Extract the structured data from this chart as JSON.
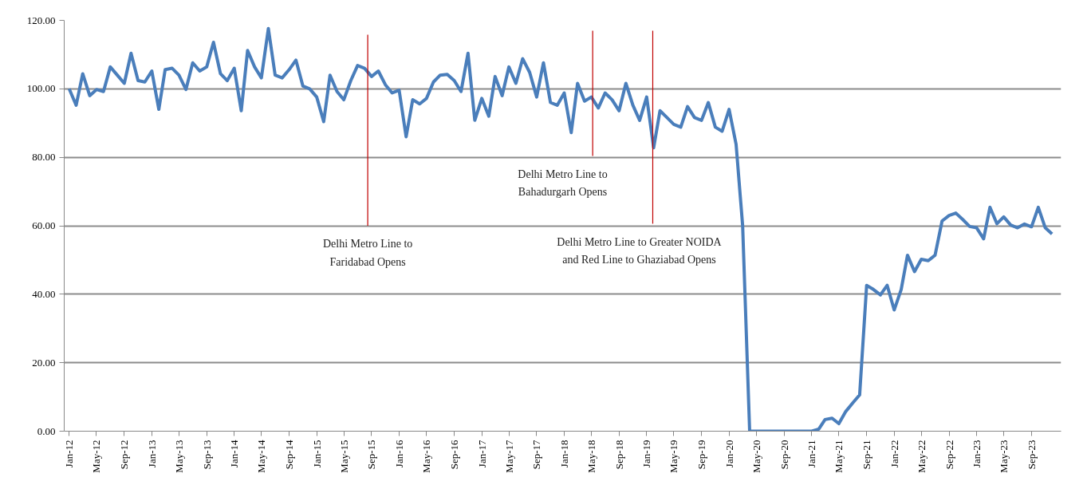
{
  "chart_data": {
    "type": "line",
    "x": [
      "2012-01",
      "2012-02",
      "2012-03",
      "2012-04",
      "2012-05",
      "2012-06",
      "2012-07",
      "2012-08",
      "2012-09",
      "2012-10",
      "2012-11",
      "2012-12",
      "2013-01",
      "2013-02",
      "2013-03",
      "2013-04",
      "2013-05",
      "2013-06",
      "2013-07",
      "2013-08",
      "2013-09",
      "2013-10",
      "2013-11",
      "2013-12",
      "2014-01",
      "2014-02",
      "2014-03",
      "2014-04",
      "2014-05",
      "2014-06",
      "2014-07",
      "2014-08",
      "2014-09",
      "2014-10",
      "2014-11",
      "2014-12",
      "2015-01",
      "2015-02",
      "2015-03",
      "2015-04",
      "2015-05",
      "2015-06",
      "2015-07",
      "2015-08",
      "2015-09",
      "2015-10",
      "2015-11",
      "2015-12",
      "2016-01",
      "2016-02",
      "2016-03",
      "2016-04",
      "2016-05",
      "2016-06",
      "2016-07",
      "2016-08",
      "2016-09",
      "2016-10",
      "2016-11",
      "2016-12",
      "2017-01",
      "2017-02",
      "2017-03",
      "2017-04",
      "2017-05",
      "2017-06",
      "2017-07",
      "2017-08",
      "2017-09",
      "2017-10",
      "2017-11",
      "2017-12",
      "2018-01",
      "2018-02",
      "2018-03",
      "2018-04",
      "2018-05",
      "2018-06",
      "2018-07",
      "2018-08",
      "2018-09",
      "2018-10",
      "2018-11",
      "2018-12",
      "2019-01",
      "2019-02",
      "2019-03",
      "2019-04",
      "2019-05",
      "2019-06",
      "2019-07",
      "2019-08",
      "2019-09",
      "2019-10",
      "2019-11",
      "2019-12",
      "2020-01",
      "2020-02",
      "2020-03",
      "2020-04",
      "2020-05",
      "2020-06",
      "2020-07",
      "2020-08",
      "2020-09",
      "2020-10",
      "2020-11",
      "2020-12",
      "2021-01",
      "2021-02",
      "2021-03",
      "2021-04",
      "2021-05",
      "2021-06",
      "2021-07",
      "2021-08",
      "2021-09",
      "2021-10",
      "2021-11",
      "2021-12",
      "2022-01",
      "2022-02",
      "2022-03",
      "2022-04",
      "2022-05",
      "2022-06",
      "2022-07",
      "2022-08",
      "2022-09",
      "2022-10",
      "2022-11",
      "2022-12",
      "2023-01",
      "2023-02",
      "2023-03",
      "2023-04",
      "2023-05",
      "2023-06",
      "2023-07",
      "2023-08",
      "2023-09",
      "2023-10",
      "2023-11",
      "2023-12"
    ],
    "series": [
      {
        "color": "#4a7ebb",
        "values": [
          100,
          95.2,
          104.4,
          98,
          99.8,
          99.2,
          106.4,
          104,
          101.6,
          110.4,
          102.4,
          102,
          105.2,
          94,
          105.6,
          106,
          104,
          99.8,
          107.6,
          105.2,
          106.4,
          113.6,
          104.4,
          102.4,
          106,
          93.6,
          111.2,
          106.4,
          103.2,
          117.6,
          104,
          103.2,
          105.6,
          108.4,
          100.8,
          100,
          97.6,
          90.4,
          104,
          99.2,
          96.8,
          102.4,
          106.8,
          106,
          103.6,
          105.2,
          101.2,
          98.8,
          99.6,
          86,
          96.8,
          95.6,
          97.2,
          102,
          104,
          104.2,
          102.4,
          99.2,
          110.4,
          90.8,
          97.2,
          92,
          103.6,
          98,
          106.4,
          101.6,
          108.8,
          104.8,
          97.6,
          107.6,
          96,
          95.2,
          98.8,
          87.2,
          101.6,
          96.4,
          97.6,
          94.4,
          98.8,
          96.8,
          93.6,
          101.6,
          95.2,
          90.8,
          97.6,
          82.8,
          93.6,
          91.6,
          89.6,
          88.8,
          94.8,
          91.6,
          90.8,
          96,
          88.8,
          87.6,
          94,
          83.8,
          60,
          0,
          0,
          0,
          0,
          0,
          0,
          0,
          0,
          0,
          0,
          0.6,
          3.4,
          3.8,
          2.2,
          5.8,
          8.2,
          10.6,
          42.6,
          41.4,
          39.8,
          42.6,
          35.4,
          41.4,
          51.4,
          46.6,
          50.2,
          49.8,
          51.4,
          61.4,
          63,
          63.7,
          61.8,
          59.8,
          59.4,
          56.2,
          65.4,
          60.6,
          62.6,
          60.2,
          59.4,
          60.5,
          59.7,
          65.4,
          59.4,
          57.6
        ]
      }
    ],
    "xlim": [
      "2011-12-10",
      "2024-01-10"
    ],
    "xticks": [
      {
        "value": "2012-01",
        "label": "Jan-12"
      },
      {
        "value": "2012-05",
        "label": "May-12"
      },
      {
        "value": "2012-09",
        "label": "Sep-12"
      },
      {
        "value": "2013-01",
        "label": "Jan-13"
      },
      {
        "value": "2013-05",
        "label": "May-13"
      },
      {
        "value": "2013-09",
        "label": "Sep-13"
      },
      {
        "value": "2014-01",
        "label": "Jan-14"
      },
      {
        "value": "2014-05",
        "label": "May-14"
      },
      {
        "value": "2014-09",
        "label": "Sep-14"
      },
      {
        "value": "2015-01",
        "label": "Jan-15"
      },
      {
        "value": "2015-05",
        "label": "May-15"
      },
      {
        "value": "2015-09",
        "label": "Sep-15"
      },
      {
        "value": "2016-01",
        "label": "Jan-16"
      },
      {
        "value": "2016-05",
        "label": "May-16"
      },
      {
        "value": "2016-09",
        "label": "Sep-16"
      },
      {
        "value": "2017-01",
        "label": "Jan-17"
      },
      {
        "value": "2017-05",
        "label": "May-17"
      },
      {
        "value": "2017-09",
        "label": "Sep-17"
      },
      {
        "value": "2018-01",
        "label": "Jan-18"
      },
      {
        "value": "2018-05",
        "label": "May-18"
      },
      {
        "value": "2018-09",
        "label": "Sep-18"
      },
      {
        "value": "2019-01",
        "label": "Jan-19"
      },
      {
        "value": "2019-05",
        "label": "May-19"
      },
      {
        "value": "2019-09",
        "label": "Sep-19"
      },
      {
        "value": "2020-01",
        "label": "Jan-20"
      },
      {
        "value": "2020-05",
        "label": "May-20"
      },
      {
        "value": "2020-09",
        "label": "Sep-20"
      },
      {
        "value": "2021-01",
        "label": "Jan-21"
      },
      {
        "value": "2021-05",
        "label": "May-21"
      },
      {
        "value": "2021-09",
        "label": "Sep-21"
      },
      {
        "value": "2022-01",
        "label": "Jan-22"
      },
      {
        "value": "2022-05",
        "label": "May-22"
      },
      {
        "value": "2022-09",
        "label": "Sep-22"
      },
      {
        "value": "2023-01",
        "label": "Jan-23"
      },
      {
        "value": "2023-05",
        "label": "May-23"
      },
      {
        "value": "2023-09",
        "label": "Sep-23"
      }
    ],
    "ylim": [
      0,
      120
    ],
    "yticks": [
      {
        "value": 0,
        "label": "0.00"
      },
      {
        "value": 20,
        "label": "20.00"
      },
      {
        "value": 40,
        "label": "40.00"
      },
      {
        "value": 60,
        "label": "60.00"
      },
      {
        "value": 80,
        "label": "80.00"
      },
      {
        "value": 100,
        "label": "100.00"
      },
      {
        "value": 120,
        "label": "120.00"
      }
    ],
    "grid": "y",
    "ref_lines": [
      {
        "axis": "x",
        "value": "2015-08-15",
        "label": "Delhi Metro Line to\nFaridabad Opens",
        "color": "#c00000"
      },
      {
        "axis": "x",
        "value": "2018-05-07",
        "label": "Delhi Metro Line to\nBahadurgarh Opens",
        "color": "#c00000"
      },
      {
        "axis": "x",
        "value": "2019-01-28",
        "label": "Delhi Metro Line to Greater NOIDA\nand Red Line to Ghaziabad Opens",
        "color": "#c00000"
      }
    ]
  }
}
